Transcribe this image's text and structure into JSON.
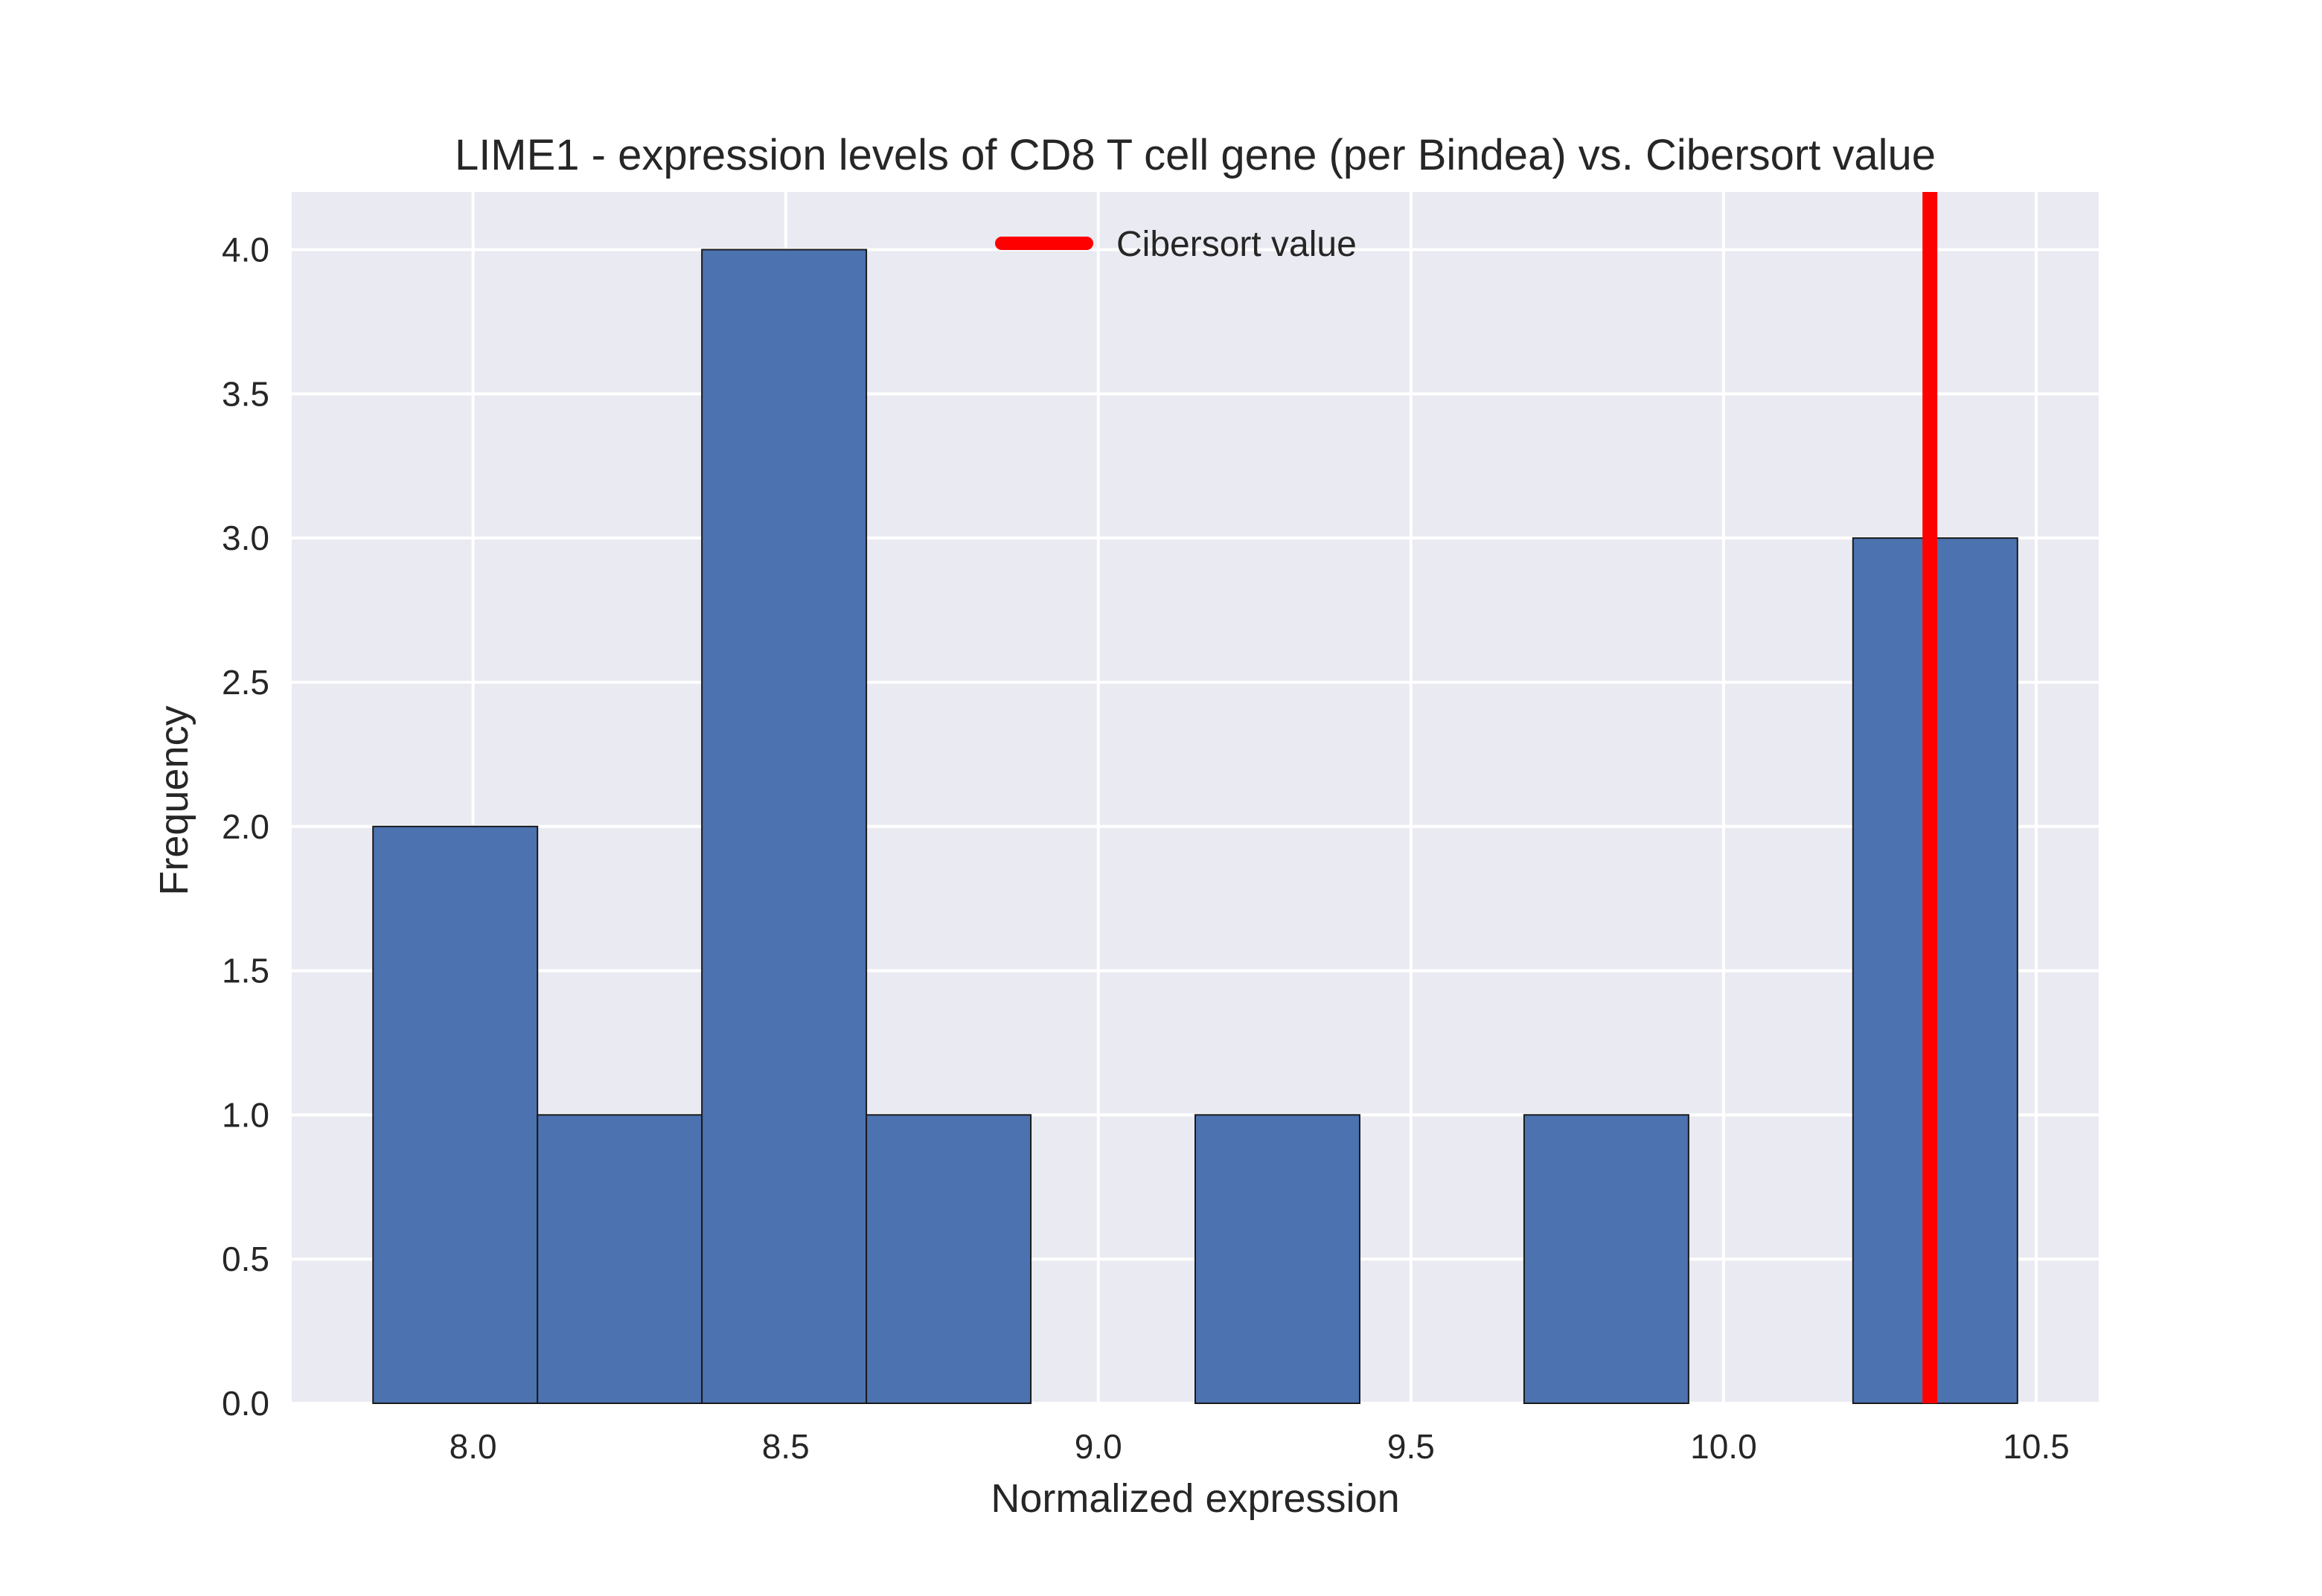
{
  "chart_data": {
    "type": "bar",
    "subtype": "histogram",
    "title": "LIME1 - expression levels of CD8 T cell gene (per Bindea) vs. Cibersort value",
    "xlabel": "Normalized expression",
    "ylabel": "Frequency",
    "xlim": [
      7.71,
      10.6
    ],
    "ylim": [
      0,
      4.2
    ],
    "xticks": [
      "8.0",
      "8.5",
      "9.0",
      "9.5",
      "10.0",
      "10.5"
    ],
    "yticks": [
      "0.0",
      "0.5",
      "1.0",
      "1.5",
      "2.0",
      "2.5",
      "3.0",
      "3.5",
      "4.0"
    ],
    "bins": [
      {
        "start": 7.84,
        "end": 8.103,
        "count": 2
      },
      {
        "start": 8.103,
        "end": 8.366,
        "count": 1
      },
      {
        "start": 8.366,
        "end": 8.629,
        "count": 4
      },
      {
        "start": 8.629,
        "end": 8.892,
        "count": 1
      },
      {
        "start": 8.892,
        "end": 9.155,
        "count": 0
      },
      {
        "start": 9.155,
        "end": 9.418,
        "count": 1
      },
      {
        "start": 9.418,
        "end": 9.681,
        "count": 0
      },
      {
        "start": 9.681,
        "end": 9.944,
        "count": 1
      },
      {
        "start": 9.944,
        "end": 10.207,
        "count": 0
      },
      {
        "start": 10.207,
        "end": 10.47,
        "count": 3
      }
    ],
    "reference_line": {
      "name": "Cibersort value",
      "x": 10.33,
      "color": "#ff0000"
    },
    "bar_color": "#4c72b0",
    "background_color": "#eaeaf2",
    "grid": true,
    "legend": {
      "position": "top-center",
      "entries": [
        "Cibersort value"
      ]
    }
  }
}
